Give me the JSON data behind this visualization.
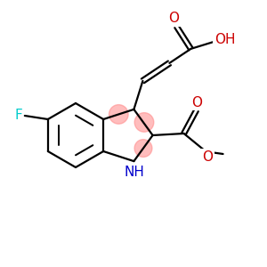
{
  "bg_color": "#ffffff",
  "atom_colors": {
    "C": "#000000",
    "N": "#0000cc",
    "O": "#cc0000",
    "F": "#00cccc"
  },
  "aromatic_circle_color": "#ff8888",
  "aromatic_circle_alpha": 0.55,
  "bond_color": "#000000",
  "bond_lw": 1.6,
  "font_size": 11
}
